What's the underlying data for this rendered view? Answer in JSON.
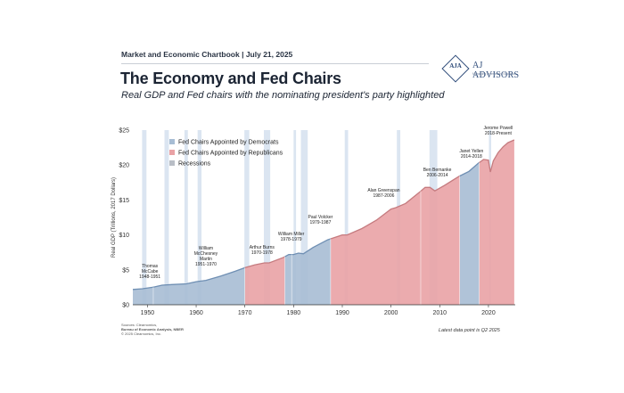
{
  "header": {
    "top_line": "Market and Economic Chartbook | July 21, 2025",
    "title": "The Economy and Fed Chairs",
    "subtitle": "Real GDP and Fed chairs with the nominating president's party highlighted"
  },
  "logo": {
    "mark_text": "AJA",
    "name": "AJ ADVISORS",
    "tagline": "Managing Investment Success"
  },
  "colors": {
    "democrat": "#a7bdd4",
    "democrat_line": "#6f8fb3",
    "republican": "#e9a2a5",
    "republican_line": "#c57b7f",
    "recession": "#d5e1ef"
  },
  "chart_data": {
    "type": "area",
    "ylabel": "Real GDP (Trillions, 2017 Dollars)",
    "xlim": [
      1947,
      2025.5
    ],
    "ylim": [
      0,
      25
    ],
    "yticks": [
      0,
      5,
      10,
      15,
      20,
      25
    ],
    "ytick_labels": [
      "$0",
      "$5",
      "$10",
      "$15",
      "$20",
      "$25"
    ],
    "xticks": [
      1950,
      1960,
      1970,
      1980,
      1990,
      2000,
      2010,
      2020
    ],
    "grid": false,
    "legend_position": "top-left",
    "legend": [
      {
        "label": "Fed Chairs Appointed by Democrats",
        "party": "D"
      },
      {
        "label": "Fed Chairs Appointed by Republicans",
        "party": "R"
      },
      {
        "label": "Recessions",
        "party": "recession"
      }
    ],
    "gdp": {
      "x": [
        1947,
        1949,
        1951,
        1953,
        1955,
        1958,
        1960,
        1962,
        1965,
        1968,
        1970,
        1972,
        1974,
        1975,
        1978,
        1979,
        1980,
        1981,
        1982,
        1984,
        1987,
        1990,
        1991,
        1994,
        1997,
        2000,
        2001,
        2003,
        2006,
        2007,
        2008,
        2009,
        2011,
        2014,
        2016,
        2018,
        2019,
        2020,
        2020.4,
        2021,
        2022,
        2023,
        2024,
        2025.3
      ],
      "y": [
        2.2,
        2.3,
        2.5,
        2.8,
        2.9,
        3.0,
        3.3,
        3.5,
        4.1,
        4.8,
        5.3,
        5.7,
        6.0,
        6.0,
        6.8,
        7.2,
        7.2,
        7.4,
        7.3,
        8.2,
        9.3,
        10.0,
        10.0,
        10.9,
        12.1,
        13.7,
        13.9,
        14.5,
        16.2,
        16.8,
        16.8,
        16.3,
        17.1,
        18.4,
        19.1,
        20.3,
        20.8,
        20.7,
        19.0,
        20.6,
        21.8,
        22.6,
        23.2,
        23.6
      ]
    },
    "chairs": [
      {
        "name": "Thomas McCabe",
        "term": "1948-1951",
        "start": 1947,
        "end": 1951.2,
        "party": "D"
      },
      {
        "name": "William McChesney Martin",
        "term": "1951-1970",
        "start": 1951.2,
        "end": 1970,
        "party": "D"
      },
      {
        "name": "Arthur Burns",
        "term": "1970-1978",
        "start": 1970,
        "end": 1978.2,
        "party": "R"
      },
      {
        "name": "William Miller",
        "term": "1978-1979",
        "start": 1978.2,
        "end": 1979.6,
        "party": "D"
      },
      {
        "name": "Paul Volcker",
        "term": "1979-1987",
        "start": 1979.6,
        "end": 1987.6,
        "party": "D"
      },
      {
        "name": "Alan Greenspan",
        "term": "1987-2006",
        "start": 1987.6,
        "end": 2006.1,
        "party": "R"
      },
      {
        "name": "Ben Bernanke",
        "term": "2006-2014",
        "start": 2006.1,
        "end": 2014.1,
        "party": "R"
      },
      {
        "name": "Janet Yellen",
        "term": "2014-2018",
        "start": 2014.1,
        "end": 2018.1,
        "party": "D"
      },
      {
        "name": "Jerome Powell",
        "term": "2018-Present",
        "start": 2018.1,
        "end": 2025.3,
        "party": "R"
      }
    ],
    "recessions": [
      [
        1948.9,
        1949.8
      ],
      [
        1953.5,
        1954.4
      ],
      [
        1957.6,
        1958.3
      ],
      [
        1960.3,
        1961.1
      ],
      [
        1969.9,
        1970.9
      ],
      [
        1973.9,
        1975.2
      ],
      [
        1980.0,
        1980.5
      ],
      [
        1981.5,
        1982.9
      ],
      [
        1990.5,
        1991.2
      ],
      [
        2001.2,
        2001.9
      ],
      [
        2007.9,
        2009.5
      ],
      [
        2020.1,
        2020.4
      ]
    ]
  },
  "footer": {
    "sources_line1": "Sources: Clearnomics,",
    "sources_line2": "Bureau of Economic Analysis, NBER",
    "copyright": "© 2025 Clearnomics, Inc.",
    "latest": "Latest data point is Q2 2025"
  }
}
